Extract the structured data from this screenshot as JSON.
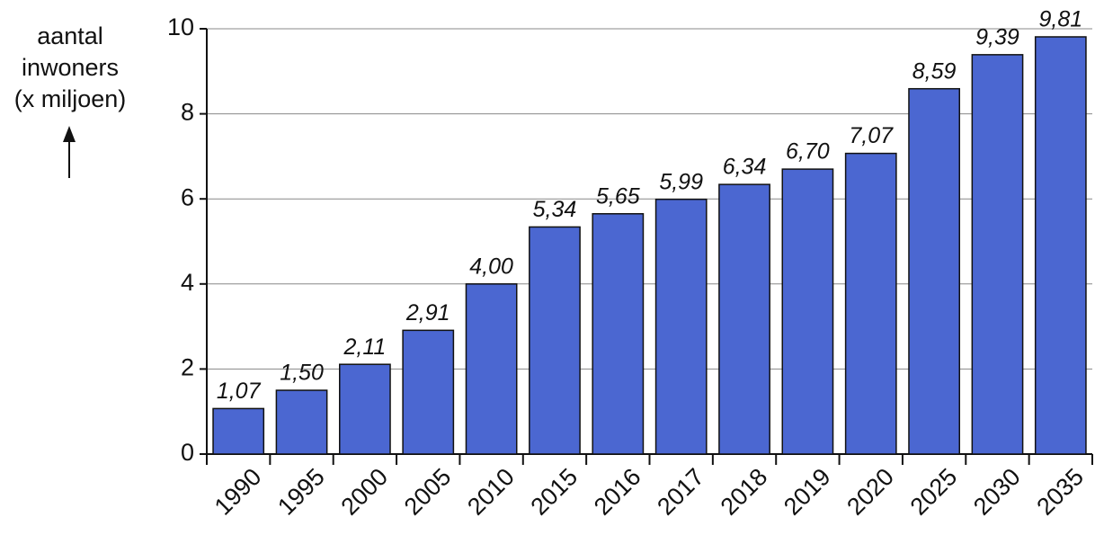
{
  "chart_data": {
    "type": "bar",
    "ylabel": [
      "aantal",
      "inwoners",
      "(x miljoen)"
    ],
    "categories": [
      "1990",
      "1995",
      "2000",
      "2005",
      "2010",
      "2015",
      "2016",
      "2017",
      "2018",
      "2019",
      "2020",
      "2025",
      "2030",
      "2035"
    ],
    "values": [
      1.07,
      1.5,
      2.11,
      2.91,
      4.0,
      5.34,
      5.65,
      5.99,
      6.34,
      6.7,
      7.07,
      8.59,
      9.39,
      9.81
    ],
    "value_labels": [
      "1,07",
      "1,50",
      "2,11",
      "2,91",
      "4,00",
      "5,34",
      "5,65",
      "5,99",
      "6,34",
      "6,70",
      "7,07",
      "8,59",
      "9,39",
      "9,81"
    ],
    "color": "#4b67d1",
    "ylim": [
      0,
      10
    ],
    "yticks": [
      0,
      2,
      4,
      6,
      8,
      10
    ],
    "grid": true
  }
}
